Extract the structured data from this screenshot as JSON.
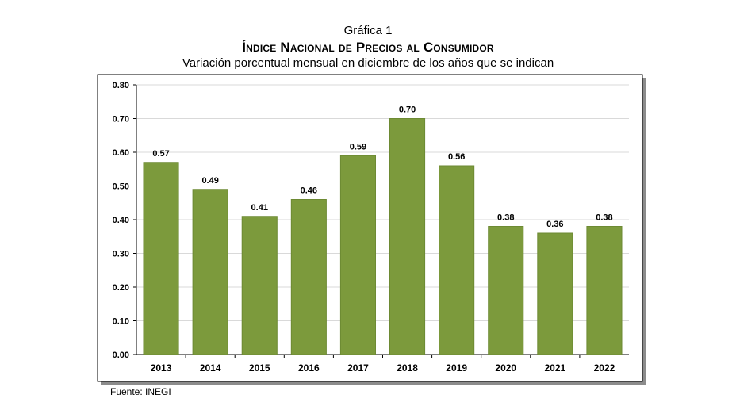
{
  "header": {
    "kicker": "Gráfica 1",
    "title": "Índice Nacional de Precios al Consumidor",
    "subtitle": "Variación porcentual mensual en diciembre de los años que se indican"
  },
  "source": "Fuente: INEGI",
  "colors": {
    "bar": "#7c9a3c",
    "bar_edge": "#6d8a33",
    "grid": "#d9d9d9",
    "frame": "#000000"
  },
  "chart_data": {
    "type": "bar",
    "title": "Índice Nacional de Precios al Consumidor",
    "subtitle": "Variación porcentual mensual en diciembre de los años que se indican",
    "categories": [
      "2013",
      "2014",
      "2015",
      "2016",
      "2017",
      "2018",
      "2019",
      "2020",
      "2021",
      "2022"
    ],
    "values": [
      0.57,
      0.49,
      0.41,
      0.46,
      0.59,
      0.7,
      0.56,
      0.38,
      0.36,
      0.38
    ],
    "value_labels": [
      "0.57",
      "0.49",
      "0.41",
      "0.46",
      "0.59",
      "0.70",
      "0.56",
      "0.38",
      "0.36",
      "0.38"
    ],
    "yticks": [
      "0.00",
      "0.10",
      "0.20",
      "0.30",
      "0.40",
      "0.50",
      "0.60",
      "0.70",
      "0.80"
    ],
    "ylim": [
      0,
      0.8
    ],
    "grid": true,
    "legend": "none",
    "xlabel": "",
    "ylabel": ""
  }
}
